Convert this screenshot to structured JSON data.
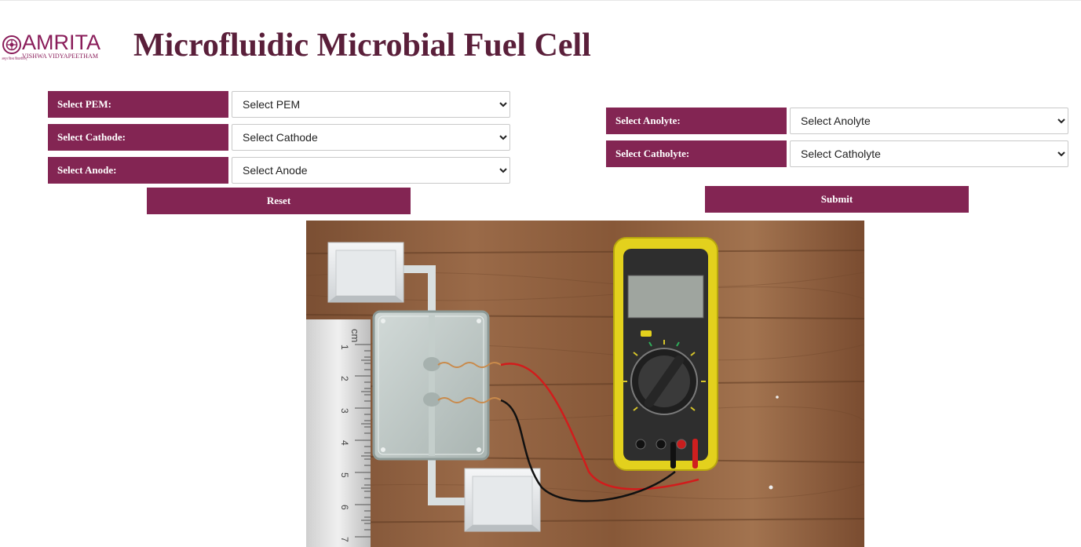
{
  "header": {
    "logo_name": "AMRITA",
    "logo_tagline": "VISHWA VIDYAPEETHAM",
    "logo_tiny": "अमृत विश्व विद्यापीठम्",
    "title": "Microfluidic Microbial Fuel Cell"
  },
  "form": {
    "pem": {
      "label": "Select PEM:",
      "selected": "Select PEM"
    },
    "cathode": {
      "label": "Select Cathode:",
      "selected": "Select Cathode"
    },
    "anode": {
      "label": "Select Anode:",
      "selected": "Select Anode"
    },
    "anolyte": {
      "label": "Select Anolyte:",
      "selected": "Select Anolyte"
    },
    "catholyte": {
      "label": "Select Catholyte:",
      "selected": "Select Catholyte"
    },
    "reset_label": "Reset",
    "submit_label": "Submit"
  },
  "scene": {
    "ruler_unit": "cm",
    "ruler_numbers": [
      "1",
      "2",
      "3",
      "4",
      "5",
      "6",
      "7"
    ]
  },
  "colors": {
    "label_bg": "#832553",
    "title": "#5a1f3a",
    "logo": "#8a1d5a",
    "wood": "#8a5a3b",
    "multimeter_yellow": "#e3d11d"
  }
}
